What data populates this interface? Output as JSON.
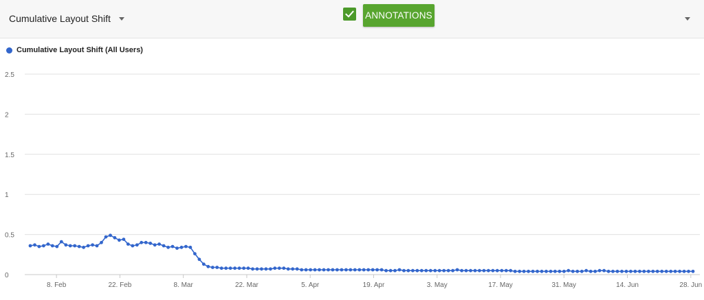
{
  "toolbar": {
    "metric_label": "Cumulative Layout Shift",
    "annotations_label": "ANNOTATIONS",
    "annotations_checked": true
  },
  "colors": {
    "series": "#3366cc",
    "annotations_button": "#58a52f",
    "checkbox": "#4c9a2a",
    "grid": "#e0e0e0"
  },
  "icons": {
    "metric_dropdown": "chevron-down-icon",
    "annotations_checkbox": "check-icon",
    "options_dropdown": "chevron-down-icon"
  },
  "chart_data": {
    "type": "line",
    "xlabel": "",
    "ylabel": "",
    "ylim": [
      0,
      2.5
    ],
    "yticks": [
      "0",
      "0.5",
      "1",
      "1.5",
      "2",
      "2.5"
    ],
    "xticks": [
      "8. Feb",
      "22. Feb",
      "8. Mar",
      "22. Mar",
      "5. Apr",
      "19. Apr",
      "3. May",
      "17. May",
      "31. May",
      "14. Jun",
      "28. Jun"
    ],
    "grid": true,
    "legend_position": "top-left",
    "x_start": "2021-02-01",
    "x_end": "2021-06-30",
    "series": [
      {
        "name": "Cumulative Layout Shift (All Users)",
        "values": [
          0.36,
          0.37,
          0.35,
          0.36,
          0.38,
          0.36,
          0.35,
          0.41,
          0.37,
          0.36,
          0.36,
          0.35,
          0.34,
          0.36,
          0.37,
          0.36,
          0.4,
          0.47,
          0.49,
          0.46,
          0.43,
          0.44,
          0.38,
          0.36,
          0.37,
          0.4,
          0.4,
          0.39,
          0.37,
          0.38,
          0.36,
          0.34,
          0.35,
          0.33,
          0.34,
          0.35,
          0.34,
          0.26,
          0.19,
          0.13,
          0.1,
          0.09,
          0.09,
          0.08,
          0.08,
          0.08,
          0.08,
          0.08,
          0.08,
          0.08,
          0.07,
          0.07,
          0.07,
          0.07,
          0.07,
          0.08,
          0.08,
          0.08,
          0.07,
          0.07,
          0.07,
          0.06,
          0.06,
          0.06,
          0.06,
          0.06,
          0.06,
          0.06,
          0.06,
          0.06,
          0.06,
          0.06,
          0.06,
          0.06,
          0.06,
          0.06,
          0.06,
          0.06,
          0.06,
          0.06,
          0.05,
          0.05,
          0.05,
          0.06,
          0.05,
          0.05,
          0.05,
          0.05,
          0.05,
          0.05,
          0.05,
          0.05,
          0.05,
          0.05,
          0.05,
          0.05,
          0.06,
          0.05,
          0.05,
          0.05,
          0.05,
          0.05,
          0.05,
          0.05,
          0.05,
          0.05,
          0.05,
          0.05,
          0.05,
          0.04,
          0.04,
          0.04,
          0.04,
          0.04,
          0.04,
          0.04,
          0.04,
          0.04,
          0.04,
          0.04,
          0.04,
          0.05,
          0.04,
          0.04,
          0.04,
          0.05,
          0.04,
          0.04,
          0.05,
          0.05,
          0.04,
          0.04,
          0.04,
          0.04,
          0.04,
          0.04,
          0.04,
          0.04,
          0.04,
          0.04,
          0.04,
          0.04,
          0.04,
          0.04,
          0.04,
          0.04,
          0.04,
          0.04,
          0.04,
          0.04
        ]
      }
    ]
  }
}
